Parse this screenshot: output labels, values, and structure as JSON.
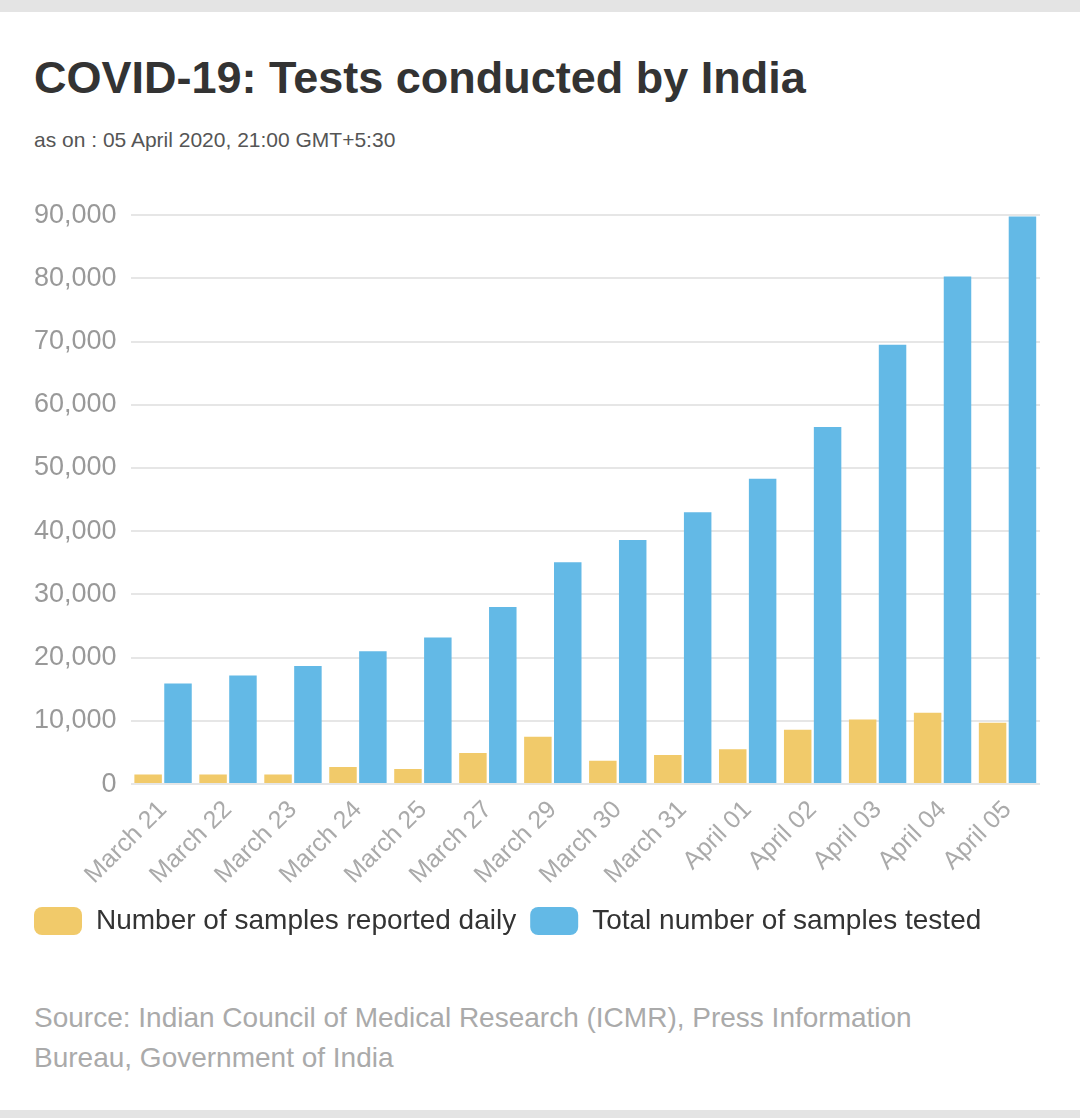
{
  "chart_data": {
    "type": "bar",
    "title": "COVID-19: Tests conducted by India",
    "subtitle": "as on : 05 April 2020, 21:00 GMT+5:30",
    "source": "Source: Indian Council of Medical Research (ICMR), Press Information Bureau, Government of India",
    "categories": [
      "March 21",
      "March 22",
      "March 23",
      "March 24",
      "March 25",
      "March 27",
      "March 29",
      "March 30",
      "March 31",
      "April 01",
      "April 02",
      "April 03",
      "April 04",
      "April 05"
    ],
    "series": [
      {
        "name": "Number of samples reported daily",
        "color": "#f1ca6a",
        "values": [
          1500,
          1500,
          1500,
          2700,
          2400,
          4900,
          7500,
          3700,
          4600,
          5500,
          8600,
          10200,
          11300,
          9700
        ]
      },
      {
        "name": "Total number of samples tested",
        "color": "#63b9e6",
        "values": [
          15900,
          17200,
          18700,
          21000,
          23200,
          28000,
          35100,
          38600,
          43000,
          48300,
          56500,
          69500,
          80300,
          89800
        ]
      }
    ],
    "ylim": [
      0,
      90000
    ],
    "yticks": [
      0,
      {
        "value": 10000,
        "label": "10,000"
      },
      {
        "value": 20000,
        "label": "20,000"
      },
      {
        "value": 30000,
        "label": "30,000"
      },
      {
        "value": 40000,
        "label": "40,000"
      },
      {
        "value": 50000,
        "label": "50,000"
      },
      {
        "value": 60000,
        "label": "60,000"
      },
      {
        "value": 70000,
        "label": "70,000"
      },
      {
        "value": 80000,
        "label": "80,000"
      },
      {
        "value": 90000,
        "label": "90,000"
      }
    ],
    "grid": true,
    "legend": "bottom"
  }
}
